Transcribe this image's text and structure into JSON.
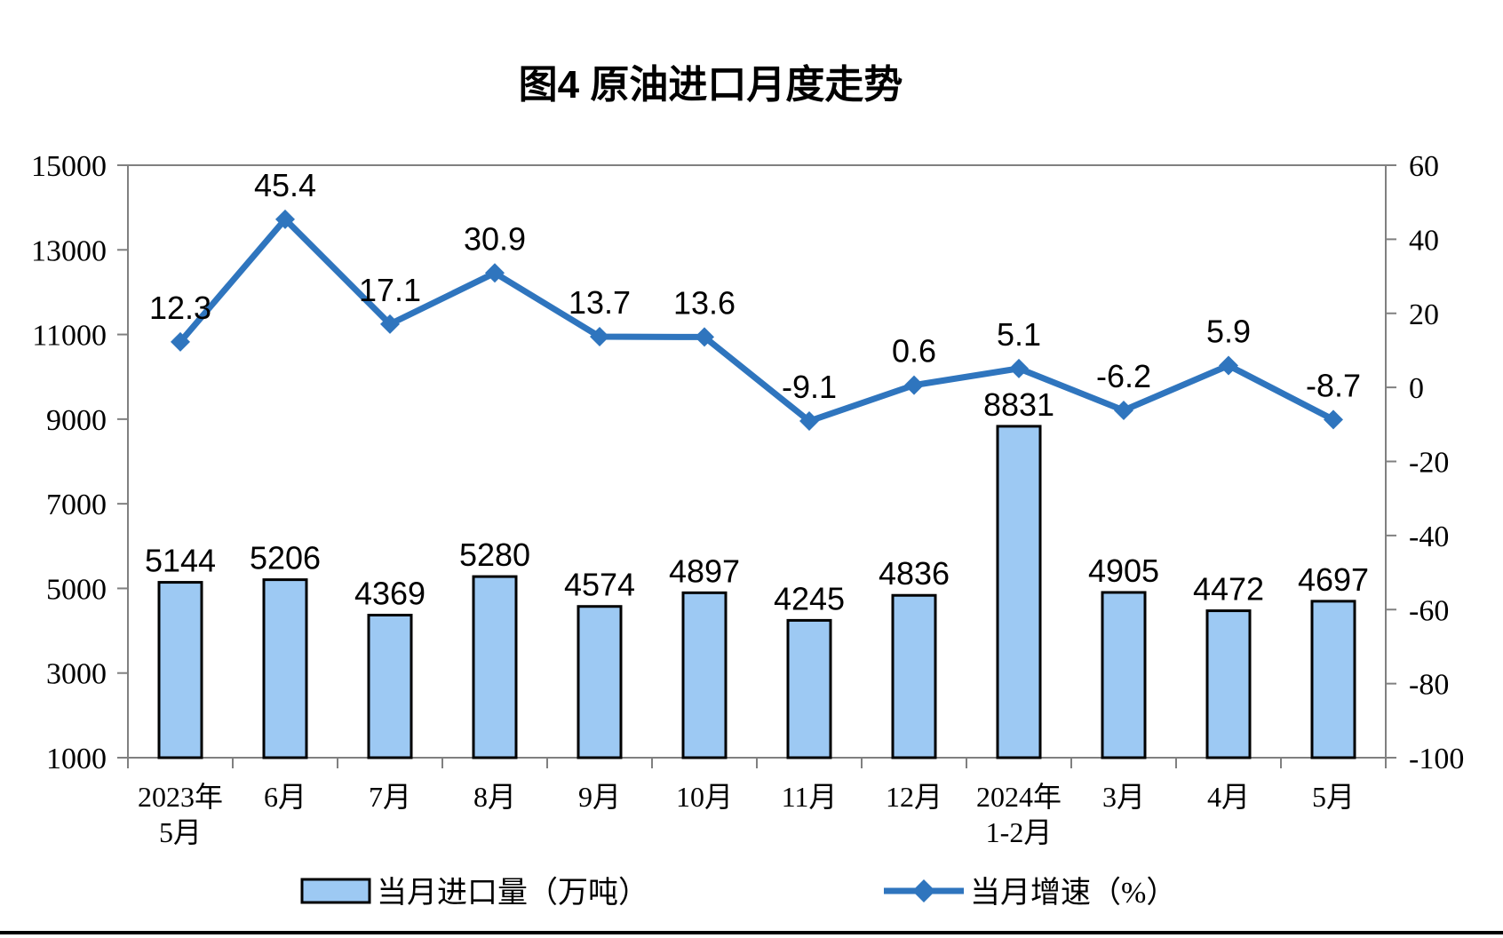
{
  "page": {
    "title": "图4 原油进口月度走势"
  },
  "chart_data": {
    "type": "combo-bar-line",
    "title": "图4 原油进口月度走势",
    "categories": [
      "2023年\n5月",
      "6月",
      "7月",
      "8月",
      "9月",
      "10月",
      "11月",
      "12月",
      "2024年\n1-2月",
      "3月",
      "4月",
      "5月"
    ],
    "series": [
      {
        "name": "当月进口量（万吨）",
        "type": "bar",
        "axis": "left",
        "color": "#9DC9F3",
        "border_color": "#000000",
        "values": [
          5144,
          5206,
          4369,
          5280,
          4574,
          4897,
          4245,
          4836,
          8831,
          4905,
          4472,
          4697
        ]
      },
      {
        "name": "当月增速（%）",
        "type": "line",
        "axis": "right",
        "color": "#2F75BE",
        "marker": "diamond",
        "values": [
          12.3,
          45.4,
          17.1,
          30.9,
          13.7,
          13.6,
          -9.1,
          0.6,
          5.1,
          -6.2,
          5.9,
          -8.7
        ]
      }
    ],
    "left_axis": {
      "min": 1000,
      "max": 15000,
      "tick_step": 2000,
      "tick_labels": [
        "15000",
        "13000",
        "11000",
        "9000",
        "7000",
        "5000",
        "3000",
        "1000"
      ]
    },
    "right_axis": {
      "min": -100,
      "max": 60,
      "tick_step": 20,
      "tick_labels": [
        "60",
        "40",
        "20",
        "0",
        "-20",
        "-40",
        "-60",
        "-80",
        "-100"
      ]
    },
    "legend_position": "bottom",
    "grid": false
  },
  "colors": {
    "frame": "#808080",
    "text": "#000000",
    "background": "#FFFFFF",
    "bottom_rule": "#000000"
  }
}
